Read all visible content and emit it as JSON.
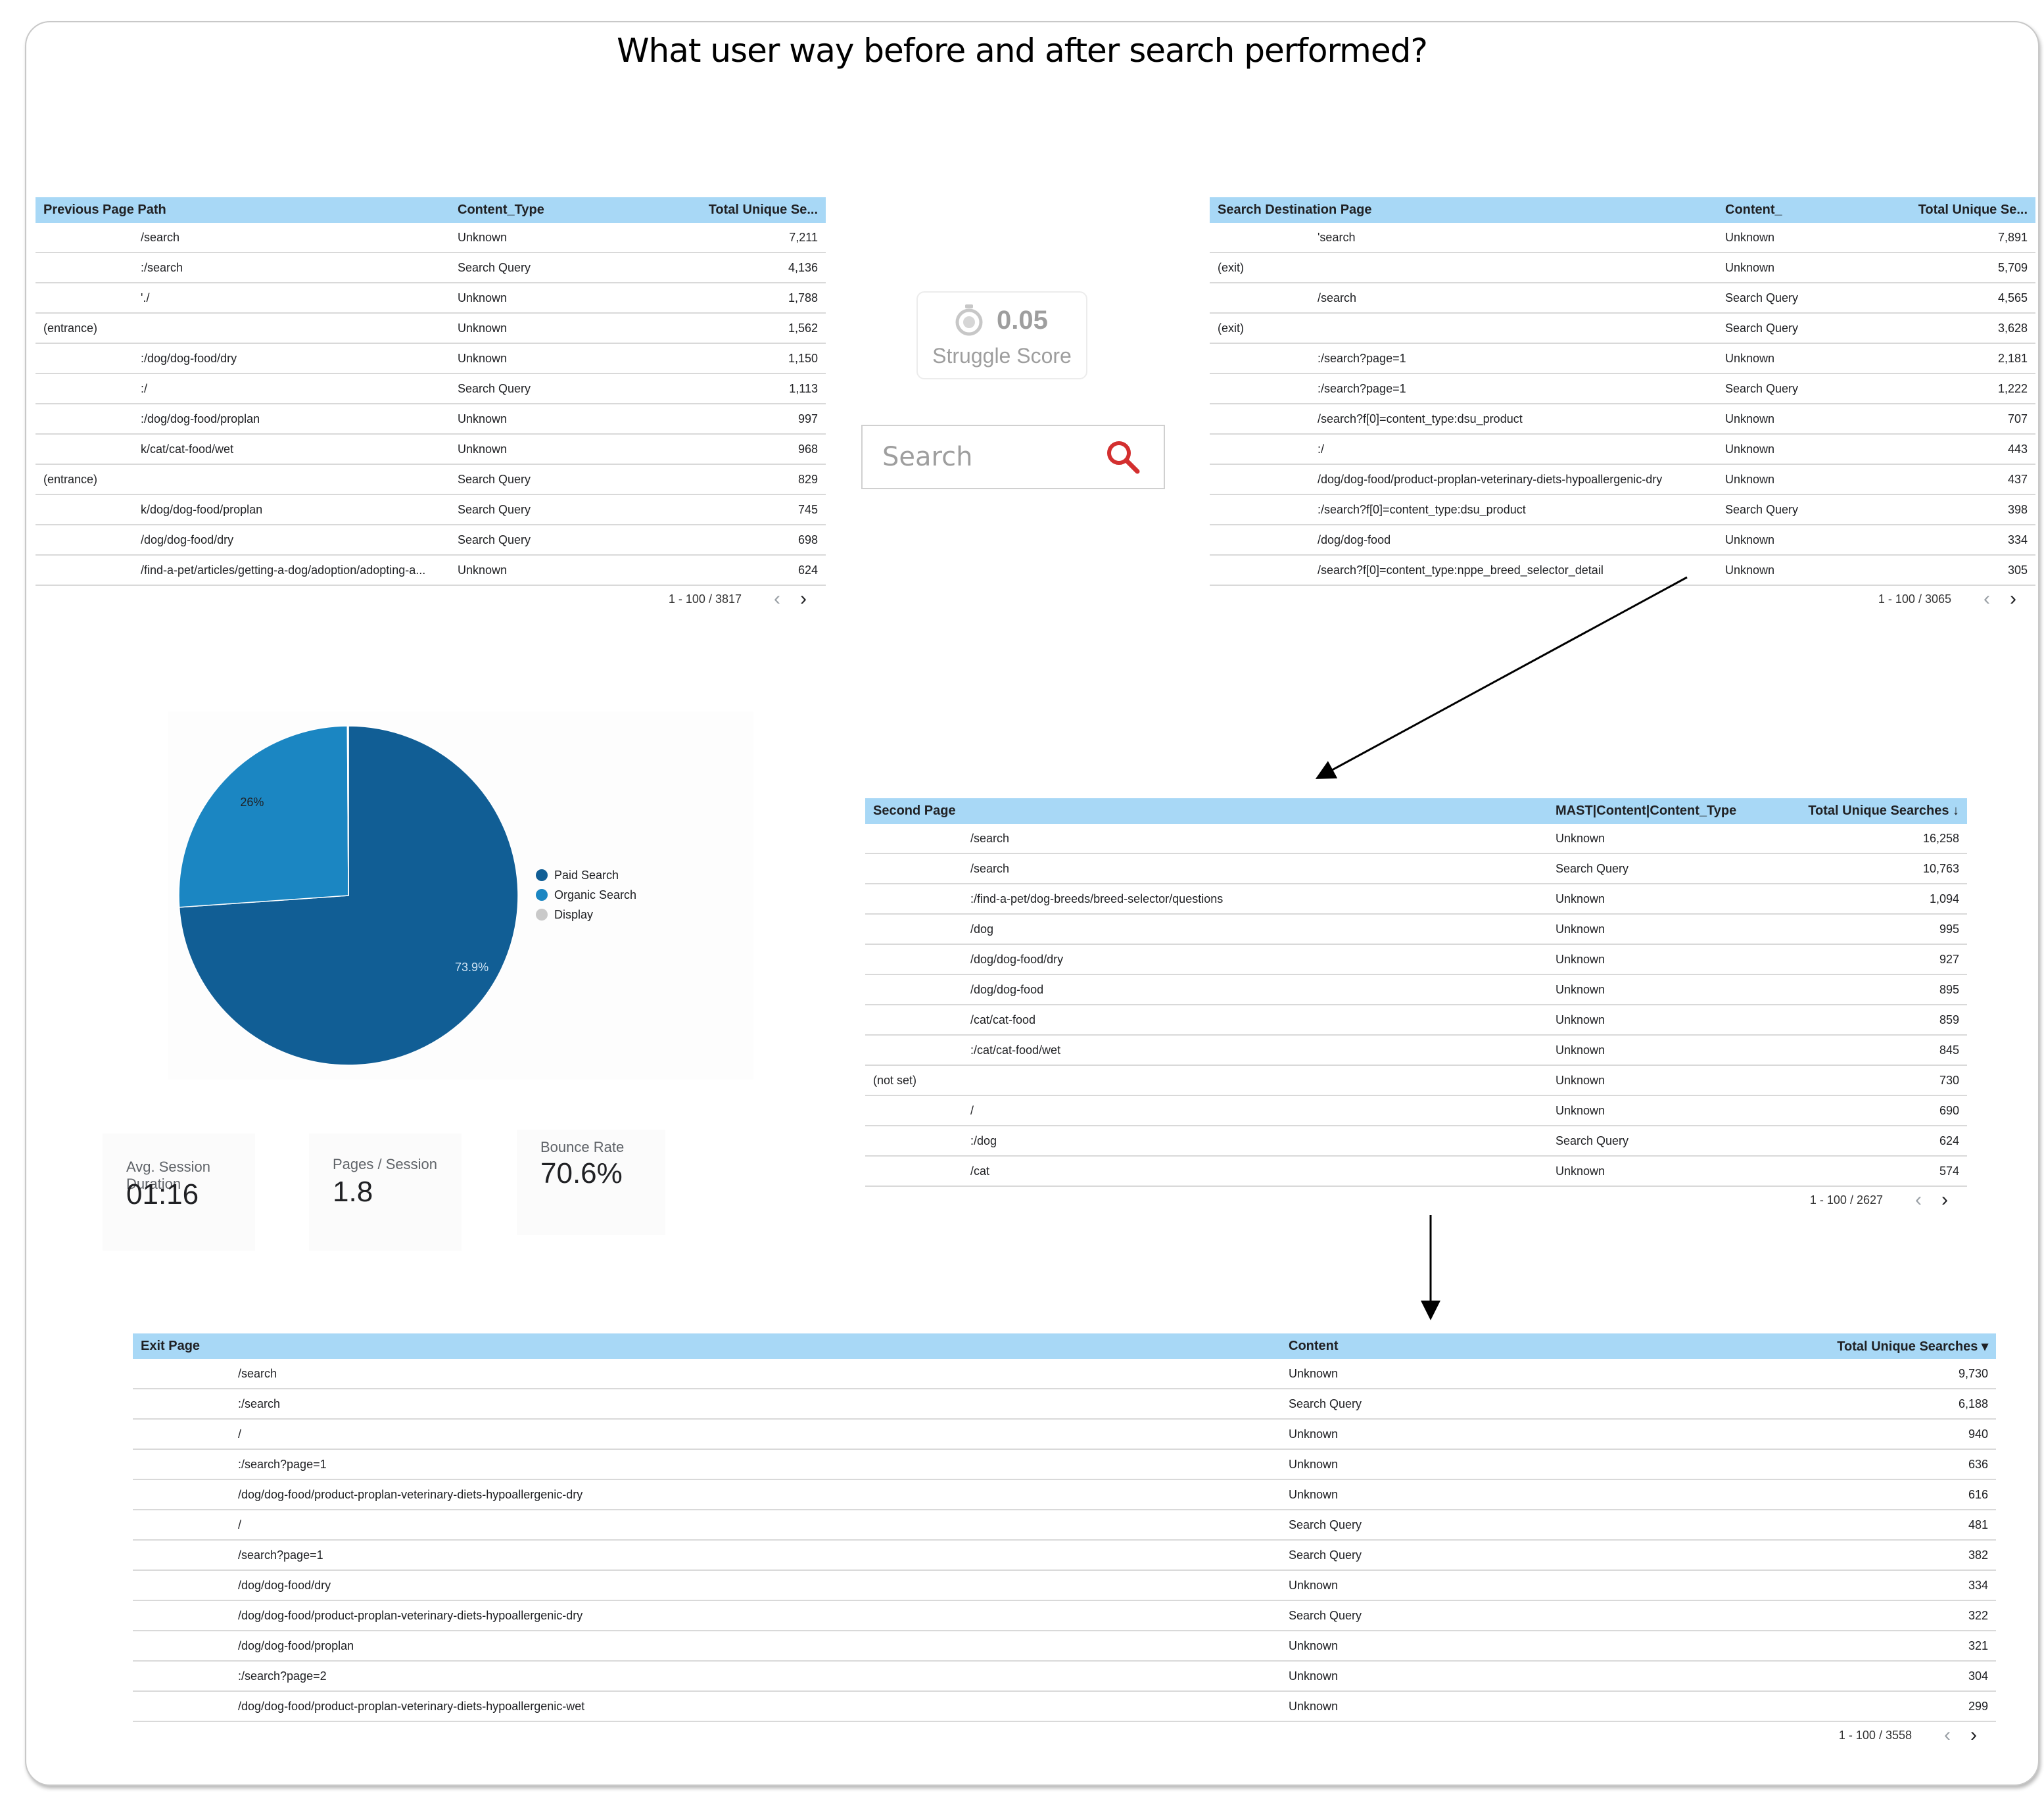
{
  "title": "What user way before and after search performed?",
  "colors": {
    "header_bg": "#a8d8f6",
    "paid": "#115e95",
    "organic": "#1b86c2",
    "display": "#c9c9c9",
    "search_icon": "#d32f2f"
  },
  "previous_page_table": {
    "headers": [
      "Previous Page Path",
      "Content_Type",
      "Total Unique Se..."
    ],
    "rows": [
      [
        "/search",
        "Unknown",
        "7,211"
      ],
      [
        ":/search",
        "Search Query",
        "4,136"
      ],
      [
        "'./",
        "Unknown",
        "1,788"
      ],
      [
        "(entrance)",
        "Unknown",
        "1,562"
      ],
      [
        ":/dog/dog-food/dry",
        "Unknown",
        "1,150"
      ],
      [
        ":/",
        "Search Query",
        "1,113"
      ],
      [
        ":/dog/dog-food/proplan",
        "Unknown",
        "997"
      ],
      [
        "k/cat/cat-food/wet",
        "Unknown",
        "968"
      ],
      [
        "(entrance)",
        "Search Query",
        "829"
      ],
      [
        "k/dog/dog-food/proplan",
        "Search Query",
        "745"
      ],
      [
        "/dog/dog-food/dry",
        "Search Query",
        "698"
      ],
      [
        "/find-a-pet/articles/getting-a-dog/adoption/adopting-a...",
        "Unknown",
        "624"
      ]
    ],
    "pagination": "1 - 100 / 3817"
  },
  "destination_table": {
    "headers": [
      "Search Destination Page",
      "Content_",
      "Total Unique Se..."
    ],
    "rows": [
      [
        "'search",
        "Unknown",
        "7,891"
      ],
      [
        "(exit)",
        "Unknown",
        "5,709"
      ],
      [
        "/search",
        "Search Query",
        "4,565"
      ],
      [
        "(exit)",
        "Search Query",
        "3,628"
      ],
      [
        ":/search?page=1",
        "Unknown",
        "2,181"
      ],
      [
        ":/search?page=1",
        "Search Query",
        "1,222"
      ],
      [
        "/search?f[0]=content_type:dsu_product",
        "Unknown",
        "707"
      ],
      [
        ":/",
        "Unknown",
        "443"
      ],
      [
        "/dog/dog-food/product-proplan-veterinary-diets-hypoallergenic-dry",
        "Unknown",
        "437"
      ],
      [
        ":/search?f[0]=content_type:dsu_product",
        "Search Query",
        "398"
      ],
      [
        "/dog/dog-food",
        "Unknown",
        "334"
      ],
      [
        "/search?f[0]=content_type:nppe_breed_selector_detail",
        "Unknown",
        "305"
      ]
    ],
    "pagination": "1 - 100 / 3065"
  },
  "second_page_table": {
    "headers": [
      "Second Page",
      "MAST|Content|Content_Type",
      "Total Unique Searches ↓"
    ],
    "rows": [
      [
        "/search",
        "Unknown",
        "16,258"
      ],
      [
        "/search",
        "Search Query",
        "10,763"
      ],
      [
        ":/find-a-pet/dog-breeds/breed-selector/questions",
        "Unknown",
        "1,094"
      ],
      [
        "/dog",
        "Unknown",
        "995"
      ],
      [
        "/dog/dog-food/dry",
        "Unknown",
        "927"
      ],
      [
        "/dog/dog-food",
        "Unknown",
        "895"
      ],
      [
        "/cat/cat-food",
        "Unknown",
        "859"
      ],
      [
        ":/cat/cat-food/wet",
        "Unknown",
        "845"
      ],
      [
        "(not set)",
        "Unknown",
        "730"
      ],
      [
        "/",
        "Unknown",
        "690"
      ],
      [
        ":/dog",
        "Search Query",
        "624"
      ],
      [
        "/cat",
        "Unknown",
        "574"
      ]
    ],
    "pagination": "1 - 100 / 2627"
  },
  "exit_table": {
    "headers": [
      "Exit Page",
      "Content",
      "Total Unique Searches ▾"
    ],
    "rows": [
      [
        "/search",
        "Unknown",
        "9,730"
      ],
      [
        ":/search",
        "Search Query",
        "6,188"
      ],
      [
        "/",
        "Unknown",
        "940"
      ],
      [
        ":/search?page=1",
        "Unknown",
        "636"
      ],
      [
        "/dog/dog-food/product-proplan-veterinary-diets-hypoallergenic-dry",
        "Unknown",
        "616"
      ],
      [
        "/",
        "Search Query",
        "481"
      ],
      [
        "/search?page=1",
        "Search Query",
        "382"
      ],
      [
        "/dog/dog-food/dry",
        "Unknown",
        "334"
      ],
      [
        "/dog/dog-food/product-proplan-veterinary-diets-hypoallergenic-dry",
        "Search Query",
        "322"
      ],
      [
        "/dog/dog-food/proplan",
        "Unknown",
        "321"
      ],
      [
        ":/search?page=2",
        "Unknown",
        "304"
      ],
      [
        "/dog/dog-food/product-proplan-veterinary-diets-hypoallergenic-wet",
        "Unknown",
        "299"
      ]
    ],
    "pagination": "1 - 100 / 3558"
  },
  "struggle_score": {
    "value": "0.05",
    "label": "Struggle Score"
  },
  "search": {
    "placeholder": "Search"
  },
  "pie": {
    "legend": [
      "Paid Search",
      "Organic Search",
      "Display"
    ],
    "slice_labels": {
      "organic": "26%",
      "paid": "73.9%"
    },
    "values": {
      "paid": 73.9,
      "organic": 26.0,
      "display": 0.1
    }
  },
  "metrics": {
    "avg_session": {
      "label": "Avg. Session Duration",
      "value": "01:16"
    },
    "pages_session": {
      "label": "Pages / Session",
      "value": "1.8"
    },
    "bounce_rate": {
      "label": "Bounce Rate",
      "value": "70.6%"
    }
  },
  "chart_data": {
    "type": "pie",
    "categories": [
      "Paid Search",
      "Organic Search",
      "Display"
    ],
    "values": [
      73.9,
      26.0,
      0.1
    ],
    "title": ""
  }
}
